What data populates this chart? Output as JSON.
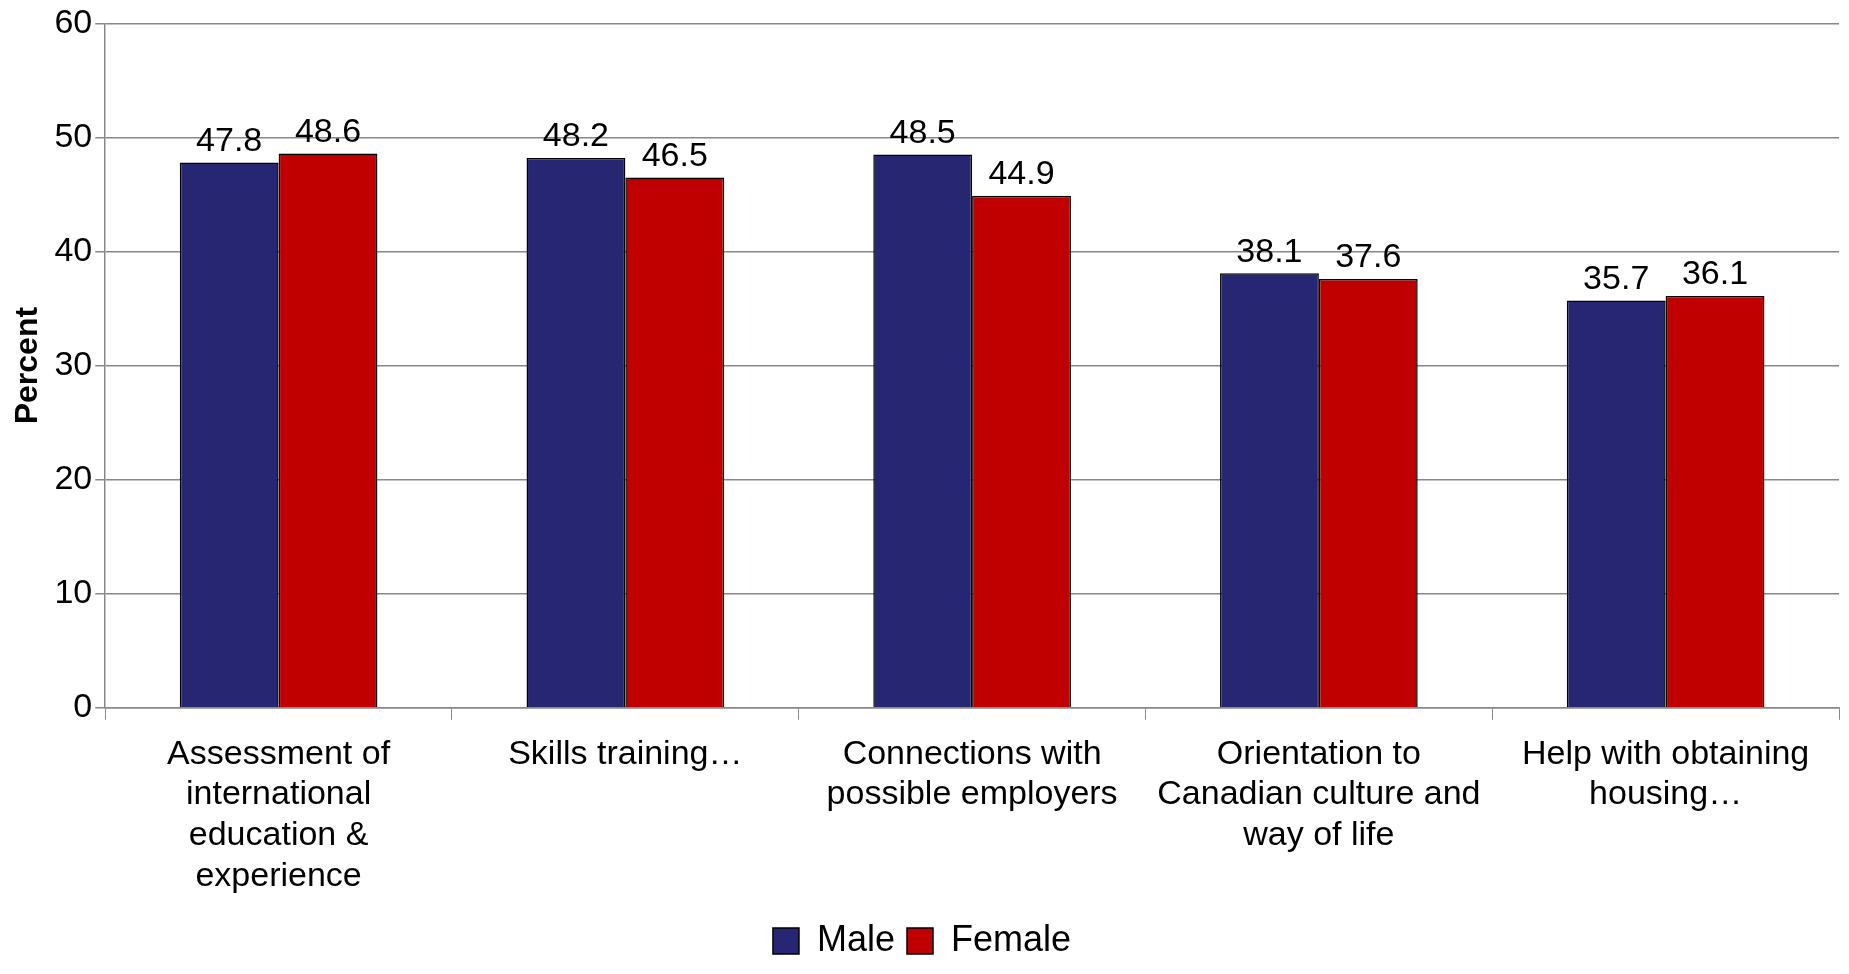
{
  "chart_data": {
    "type": "bar",
    "ylabel": "Percent",
    "categories": [
      "Assessment of international education & experience",
      "Skills training…",
      "Connections with possible employers",
      "Orientation to Canadian culture and way of life",
      "Help with obtaining housing…"
    ],
    "series": [
      {
        "name": "Male",
        "color": "#262673",
        "values": [
          47.8,
          48.2,
          48.5,
          38.1,
          35.7
        ]
      },
      {
        "name": "Female",
        "color": "#c00000",
        "values": [
          48.6,
          46.5,
          44.9,
          37.6,
          36.1
        ]
      }
    ],
    "ylim": [
      0,
      60
    ],
    "yticks": [
      0,
      10,
      20,
      30,
      40,
      50,
      60
    ],
    "grid": "y",
    "legend": "bottom",
    "data_labels": true
  }
}
